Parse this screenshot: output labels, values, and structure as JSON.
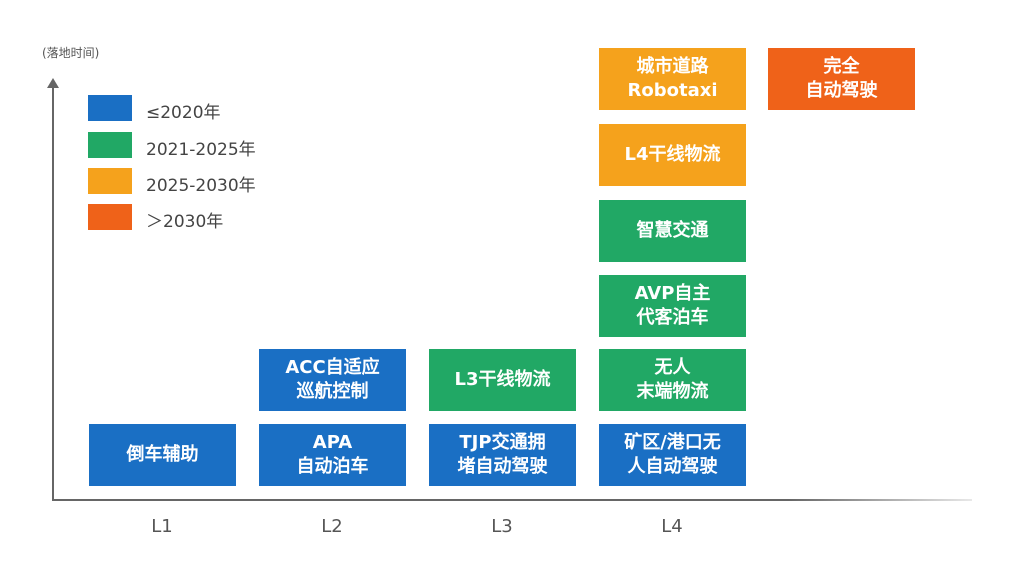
{
  "y_axis_label": "(落地时间)",
  "colors": {
    "le2020": "#1a6fc4",
    "y2021_2025": "#21a865",
    "y2025_2030": "#f5a21c",
    "gt2030": "#ef6219"
  },
  "legend": [
    {
      "label": "≤2020年",
      "color": "#1a6fc4"
    },
    {
      "label": "2021-2025年",
      "color": "#21a865"
    },
    {
      "label": "2025-2030年",
      "color": "#f5a21c"
    },
    {
      "label": "＞2030年",
      "color": "#ef6219"
    }
  ],
  "x_ticks": [
    "L1",
    "L2",
    "L3",
    "L4"
  ],
  "boxes": {
    "l1_reverse": {
      "line1": "倒车辅助",
      "line2": ""
    },
    "l2_apa": {
      "line1": "APA",
      "line2": "自动泊车"
    },
    "l2_acc": {
      "line1": "ACC自适应",
      "line2": "巡航控制"
    },
    "l3_tjp": {
      "line1": "TJP交通拥",
      "line2": "堵自动驾驶"
    },
    "l3_trunk": {
      "line1": "L3干线物流",
      "line2": ""
    },
    "l4_mine": {
      "line1": "矿区/港口无",
      "line2": "人自动驾驶"
    },
    "l4_lastmile": {
      "line1": "无人",
      "line2": "末端物流"
    },
    "l4_avp": {
      "line1": "AVP自主",
      "line2": "代客泊车"
    },
    "l4_smart": {
      "line1": "智慧交通",
      "line2": ""
    },
    "l4_trunk": {
      "line1": "L4干线物流",
      "line2": ""
    },
    "l4_robotaxi": {
      "line1": "城市道路",
      "line2": "Robotaxi"
    },
    "full_auto": {
      "line1": "完全",
      "line2": "自动驾驶"
    }
  }
}
